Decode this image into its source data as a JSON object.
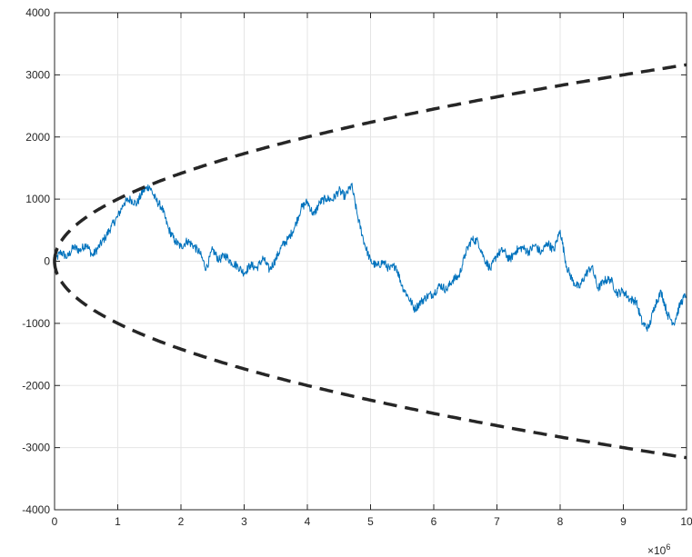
{
  "chart_data": {
    "type": "line",
    "title": "",
    "xlabel": "",
    "ylabel": "",
    "xlim": [
      0,
      10000000
    ],
    "ylim": [
      -4000,
      4000
    ],
    "x_scale_exponent": "×10",
    "x_scale_power": "6",
    "xticks": [
      0,
      1000000,
      2000000,
      3000000,
      4000000,
      5000000,
      6000000,
      7000000,
      8000000,
      9000000,
      10000000
    ],
    "xtick_labels": [
      "0",
      "1",
      "2",
      "3",
      "4",
      "5",
      "6",
      "7",
      "8",
      "9",
      "10"
    ],
    "yticks": [
      -4000,
      -3000,
      -2000,
      -1000,
      0,
      1000,
      2000,
      3000,
      4000
    ],
    "ytick_labels": [
      "-4000",
      "-3000",
      "-2000",
      "-1000",
      "0",
      "1000",
      "2000",
      "3000",
      "4000"
    ],
    "grid": true,
    "series": [
      {
        "style": "solid",
        "color": "#0072bd",
        "points": [
          [
            0,
            0
          ],
          [
            100000,
            150
          ],
          [
            200000,
            60
          ],
          [
            300000,
            230
          ],
          [
            400000,
            170
          ],
          [
            500000,
            280
          ],
          [
            600000,
            90
          ],
          [
            700000,
            230
          ],
          [
            800000,
            380
          ],
          [
            900000,
            560
          ],
          [
            1000000,
            720
          ],
          [
            1100000,
            940
          ],
          [
            1200000,
            1000
          ],
          [
            1300000,
            920
          ],
          [
            1400000,
            1130
          ],
          [
            1500000,
            1210
          ],
          [
            1600000,
            990
          ],
          [
            1700000,
            860
          ],
          [
            1800000,
            530
          ],
          [
            1900000,
            330
          ],
          [
            2000000,
            230
          ],
          [
            2100000,
            330
          ],
          [
            2200000,
            250
          ],
          [
            2300000,
            130
          ],
          [
            2400000,
            -120
          ],
          [
            2500000,
            190
          ],
          [
            2600000,
            20
          ],
          [
            2700000,
            100
          ],
          [
            2800000,
            -20
          ],
          [
            2900000,
            -80
          ],
          [
            3000000,
            -190
          ],
          [
            3100000,
            -60
          ],
          [
            3200000,
            -110
          ],
          [
            3300000,
            50
          ],
          [
            3400000,
            -140
          ],
          [
            3500000,
            30
          ],
          [
            3600000,
            250
          ],
          [
            3700000,
            360
          ],
          [
            3800000,
            550
          ],
          [
            3900000,
            850
          ],
          [
            4000000,
            960
          ],
          [
            4100000,
            740
          ],
          [
            4200000,
            950
          ],
          [
            4300000,
            1010
          ],
          [
            4400000,
            990
          ],
          [
            4500000,
            1140
          ],
          [
            4600000,
            1040
          ],
          [
            4700000,
            1230
          ],
          [
            4800000,
            700
          ],
          [
            4900000,
            300
          ],
          [
            5000000,
            0
          ],
          [
            5100000,
            -80
          ],
          [
            5200000,
            -10
          ],
          [
            5300000,
            -130
          ],
          [
            5400000,
            -70
          ],
          [
            5500000,
            -400
          ],
          [
            5600000,
            -580
          ],
          [
            5700000,
            -770
          ],
          [
            5800000,
            -650
          ],
          [
            5900000,
            -560
          ],
          [
            6000000,
            -520
          ],
          [
            6100000,
            -380
          ],
          [
            6200000,
            -460
          ],
          [
            6300000,
            -300
          ],
          [
            6400000,
            -240
          ],
          [
            6500000,
            120
          ],
          [
            6600000,
            350
          ],
          [
            6700000,
            320
          ],
          [
            6800000,
            40
          ],
          [
            6900000,
            -130
          ],
          [
            7000000,
            110
          ],
          [
            7100000,
            180
          ],
          [
            7200000,
            20
          ],
          [
            7300000,
            170
          ],
          [
            7400000,
            220
          ],
          [
            7500000,
            150
          ],
          [
            7600000,
            260
          ],
          [
            7700000,
            130
          ],
          [
            7800000,
            300
          ],
          [
            7900000,
            170
          ],
          [
            8000000,
            500
          ],
          [
            8100000,
            -80
          ],
          [
            8200000,
            -320
          ],
          [
            8300000,
            -430
          ],
          [
            8400000,
            -220
          ],
          [
            8500000,
            -80
          ],
          [
            8600000,
            -440
          ],
          [
            8700000,
            -310
          ],
          [
            8800000,
            -290
          ],
          [
            8900000,
            -520
          ],
          [
            9000000,
            -480
          ],
          [
            9100000,
            -610
          ],
          [
            9200000,
            -640
          ],
          [
            9300000,
            -1000
          ],
          [
            9400000,
            -1080
          ],
          [
            9500000,
            -700
          ],
          [
            9600000,
            -490
          ],
          [
            9700000,
            -860
          ],
          [
            9800000,
            -1000
          ],
          [
            9900000,
            -690
          ],
          [
            10000000,
            -520
          ]
        ]
      },
      {
        "style": "dashed",
        "color": "#262626",
        "function": "sqrt",
        "sign": 1
      },
      {
        "style": "dashed",
        "color": "#262626",
        "function": "sqrt",
        "sign": -1
      }
    ]
  }
}
